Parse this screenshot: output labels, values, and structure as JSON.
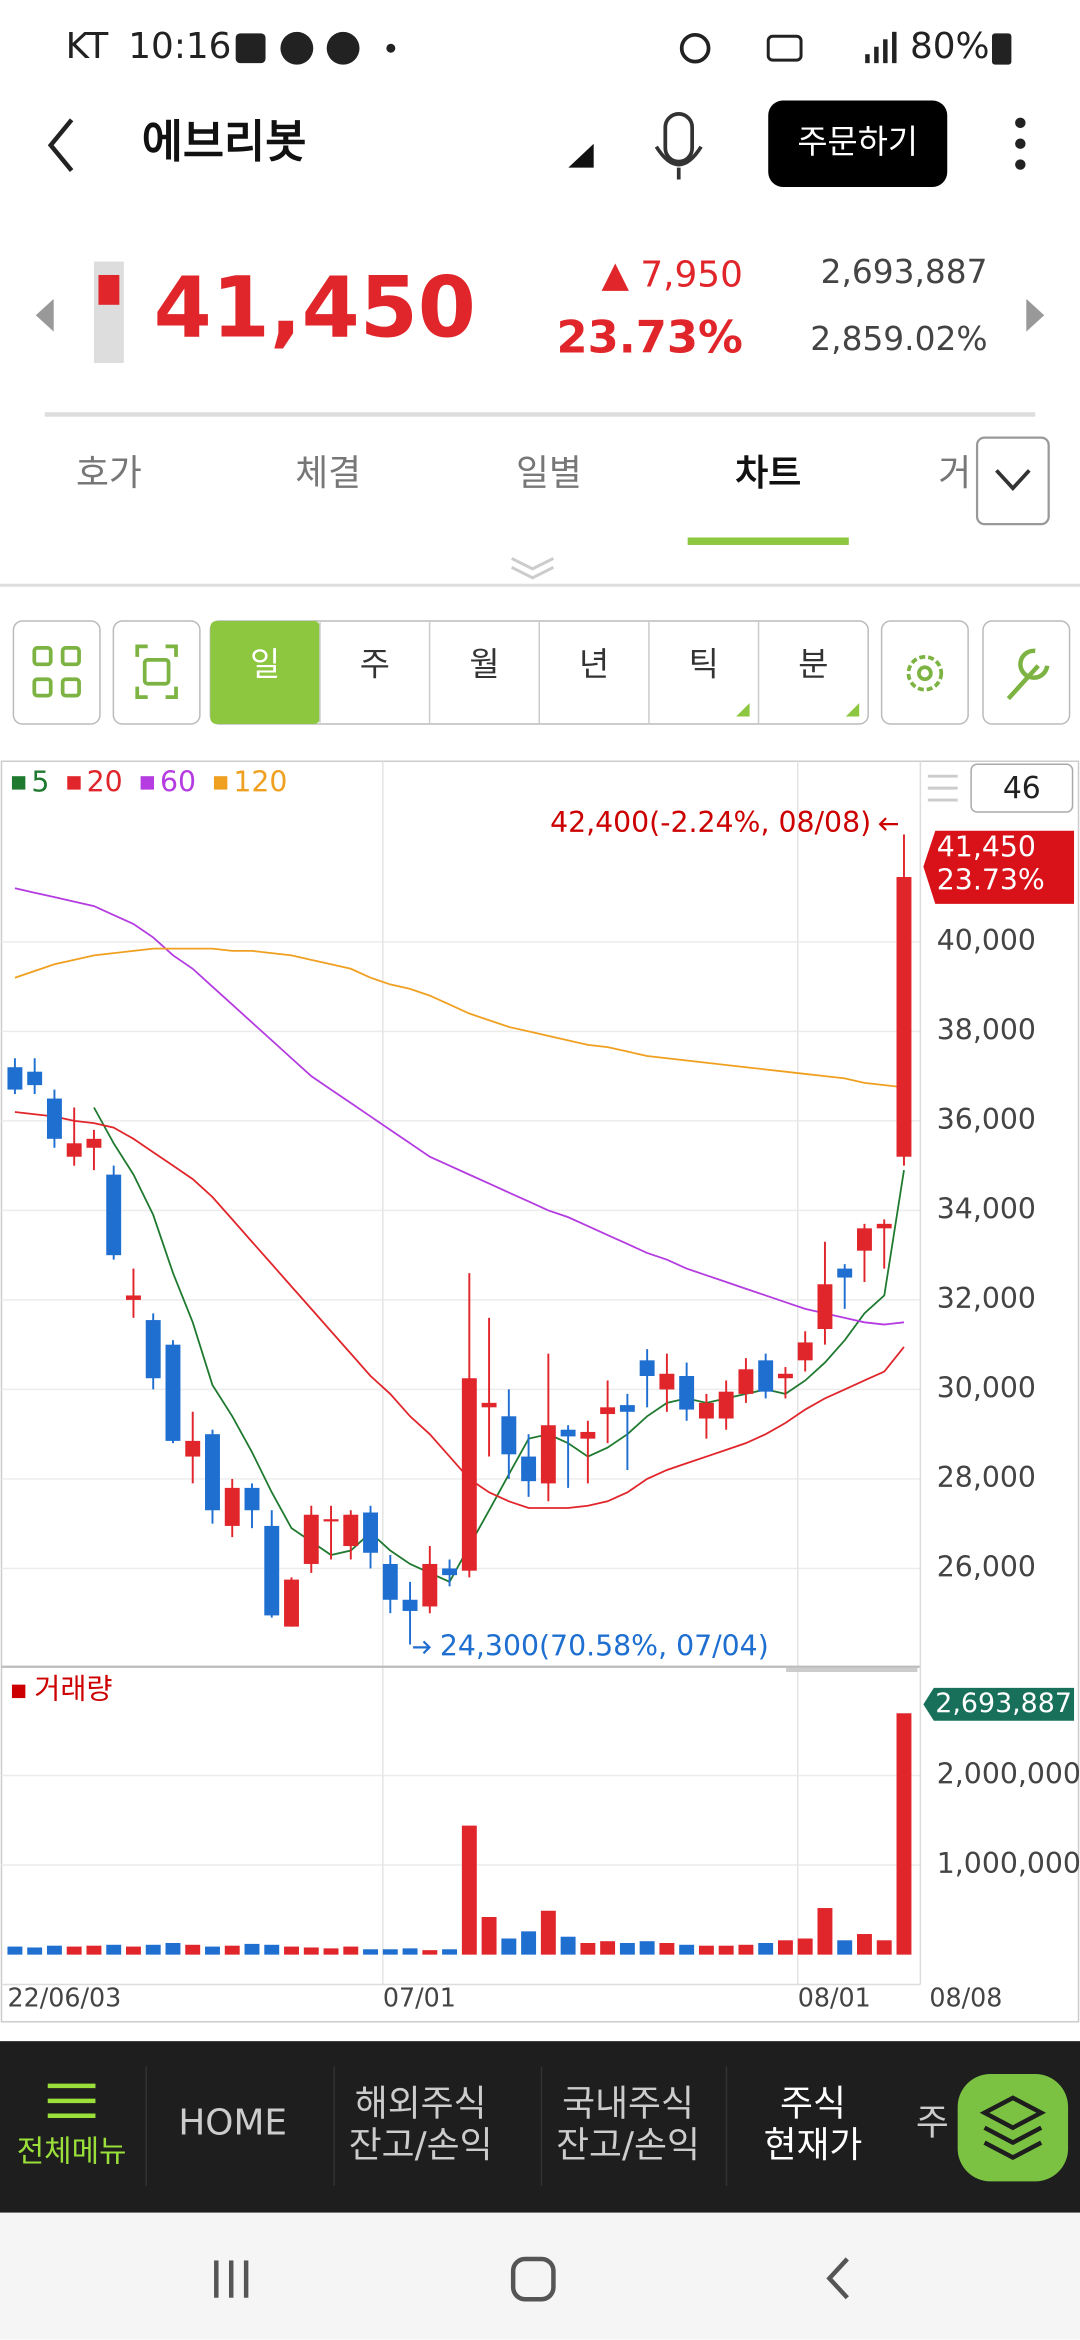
{
  "status_bar": {
    "carrier": "KT",
    "time": "10:16",
    "battery": "80%"
  },
  "header": {
    "title": "에브리봇",
    "order_button": "주문하기"
  },
  "quote": {
    "price": "41,450",
    "change": "▲ 7,950",
    "change_rate": "23.73%",
    "volume": "2,693,887",
    "turnover": "2,859.02%"
  },
  "tabs": {
    "items": [
      "호가",
      "체결",
      "일별",
      "차트",
      "거"
    ],
    "selected": 3
  },
  "toolbar": {
    "items": [
      "일",
      "주",
      "월",
      "년",
      "틱",
      "분"
    ],
    "selected": 0
  },
  "chart_data": {
    "type": "candlestick",
    "categories": [
      "22/06/03",
      null,
      null,
      null,
      null,
      null,
      null,
      null,
      null,
      null,
      null,
      null,
      null,
      null,
      null,
      null,
      null,
      null,
      null,
      "07/01",
      null,
      null,
      null,
      null,
      null,
      null,
      null,
      null,
      null,
      null,
      null,
      null,
      null,
      null,
      null,
      null,
      null,
      null,
      null,
      null,
      "08/01",
      null,
      null,
      null,
      null,
      "08/08"
    ],
    "open": [
      37200,
      37100,
      36500,
      35200,
      35400,
      34800,
      32000,
      31550,
      31000,
      28500,
      29000,
      26950,
      27800,
      26950,
      24700,
      26100,
      27050,
      26500,
      27250,
      26100,
      25300,
      25150,
      26000,
      25950,
      29600,
      29400,
      28500,
      27900,
      29100,
      28900,
      29450,
      29650,
      30650,
      30000,
      30300,
      29350,
      29350,
      29900,
      30650,
      30250,
      30650,
      31350,
      32700,
      33100,
      33600,
      35200
    ],
    "high": [
      37400,
      37400,
      36700,
      36300,
      35800,
      35000,
      32700,
      31700,
      31100,
      29500,
      29100,
      28000,
      27900,
      27300,
      25800,
      27400,
      27400,
      27300,
      27400,
      26300,
      25700,
      26500,
      26200,
      32600,
      31600,
      30000,
      29000,
      30800,
      29200,
      29300,
      30200,
      29900,
      30900,
      30800,
      30600,
      29900,
      30200,
      30700,
      30800,
      30500,
      31300,
      33300,
      32800,
      33700,
      33800,
      42400
    ],
    "low": [
      36600,
      36600,
      35400,
      35000,
      34900,
      32900,
      31600,
      30000,
      28800,
      27900,
      27000,
      26700,
      26900,
      24900,
      24700,
      25900,
      26200,
      26200,
      26000,
      25000,
      24300,
      25000,
      25600,
      25800,
      28500,
      28000,
      27600,
      27500,
      27800,
      27900,
      28800,
      28200,
      29600,
      29500,
      29300,
      28900,
      29100,
      29700,
      29800,
      29800,
      30400,
      31000,
      31800,
      32400,
      32700,
      35000
    ],
    "close": [
      36700,
      36800,
      35600,
      35500,
      35600,
      33000,
      32100,
      30250,
      28850,
      28850,
      27300,
      27800,
      27300,
      24950,
      25750,
      27200,
      27100,
      27200,
      26350,
      25300,
      25050,
      26100,
      25850,
      30250,
      29700,
      28550,
      27950,
      29200,
      28950,
      29050,
      29600,
      29500,
      30300,
      30350,
      29550,
      29700,
      29950,
      30450,
      29950,
      30350,
      31050,
      32350,
      32500,
      33600,
      33700,
      41450
    ],
    "ma_lines": [
      {
        "name": "5",
        "color": "#1f7a30",
        "values": [
          null,
          null,
          null,
          null,
          36300,
          35500,
          34800,
          33900,
          32600,
          31500,
          30100,
          29400,
          28600,
          27700,
          26900,
          26600,
          26300,
          26400,
          26800,
          26400,
          26100,
          25900,
          25700,
          26500,
          27300,
          28100,
          28900,
          29000,
          28800,
          28500,
          28700,
          29000,
          29400,
          29700,
          29800,
          29700,
          29800,
          29900,
          30000,
          29900,
          30200,
          30600,
          31100,
          31700,
          32100,
          34900
        ]
      },
      {
        "name": "20",
        "color": "#e0262b",
        "values": [
          36200,
          36150,
          36100,
          36000,
          35950,
          35850,
          35600,
          35300,
          35000,
          34700,
          34300,
          33800,
          33300,
          32800,
          32300,
          31800,
          31300,
          30800,
          30300,
          29900,
          29400,
          29000,
          28500,
          28000,
          27700,
          27500,
          27350,
          27350,
          27350,
          27400,
          27500,
          27700,
          28000,
          28200,
          28350,
          28500,
          28650,
          28800,
          29000,
          29250,
          29550,
          29800,
          30000,
          30200,
          30400,
          30950
        ]
      },
      {
        "name": "60",
        "color": "#b43ce0",
        "values": [
          41200,
          41100,
          41000,
          40900,
          40800,
          40600,
          40400,
          40100,
          39700,
          39400,
          39000,
          38600,
          38200,
          37800,
          37400,
          37000,
          36700,
          36400,
          36100,
          35800,
          35500,
          35200,
          35000,
          34800,
          34600,
          34400,
          34200,
          34000,
          33850,
          33650,
          33450,
          33250,
          33050,
          32900,
          32700,
          32550,
          32400,
          32250,
          32100,
          31950,
          31800,
          31700,
          31600,
          31500,
          31450,
          31500
        ]
      },
      {
        "name": "120",
        "color": "#f0a020",
        "values": [
          39200,
          39350,
          39500,
          39600,
          39700,
          39750,
          39800,
          39850,
          39850,
          39850,
          39850,
          39800,
          39800,
          39750,
          39700,
          39600,
          39500,
          39400,
          39200,
          39050,
          38950,
          38800,
          38600,
          38400,
          38250,
          38100,
          38000,
          37900,
          37800,
          37700,
          37650,
          37550,
          37450,
          37400,
          37350,
          37300,
          37250,
          37200,
          37150,
          37100,
          37050,
          37000,
          36950,
          36850,
          36800,
          36750
        ]
      }
    ],
    "ylim": [
      23870,
      43970
    ],
    "yticks": [
      {
        "value": 26000,
        "label": "26,000"
      },
      {
        "value": 28000,
        "label": "28,000"
      },
      {
        "value": 30000,
        "label": "30,000"
      },
      {
        "value": 32000,
        "label": "32,000"
      },
      {
        "value": 34000,
        "label": "34,000"
      },
      {
        "value": 36000,
        "label": "36,000"
      },
      {
        "value": 38000,
        "label": "38,000"
      },
      {
        "value": 40000,
        "label": "40,000"
      }
    ],
    "grid": true,
    "high_label": "42,400(-2.24%, 08/08)",
    "low_label": "24,300(70.58%, 07/04)",
    "last_price": "41,450",
    "last_rate": "23.73%",
    "period": "46",
    "volume": {
      "title": "거래량",
      "values": [
        90000,
        80000,
        100000,
        90000,
        100000,
        110000,
        90000,
        110000,
        130000,
        110000,
        90000,
        100000,
        120000,
        110000,
        90000,
        80000,
        70000,
        90000,
        60000,
        60000,
        70000,
        50000,
        60000,
        1440000,
        420000,
        180000,
        260000,
        490000,
        200000,
        130000,
        150000,
        130000,
        150000,
        130000,
        110000,
        100000,
        100000,
        110000,
        130000,
        160000,
        180000,
        520000,
        160000,
        230000,
        160000,
        2693887
      ],
      "ylim": [
        0,
        3130000
      ],
      "yticks": [
        {
          "value": 1000000,
          "label": "1,000,000"
        },
        {
          "value": 2000000,
          "label": "2,000,000"
        }
      ],
      "last_label": "2,693,887"
    },
    "up_color": "#e0262b",
    "down_color": "#1f6fd1"
  },
  "bottom_nav": [
    [
      "전체메뉴"
    ],
    [
      "HOME"
    ],
    [
      "해외주식",
      "잔고/손익"
    ],
    [
      "국내주식",
      "잔고/손익"
    ],
    [
      "주식",
      "현재가"
    ],
    [
      "주"
    ]
  ]
}
